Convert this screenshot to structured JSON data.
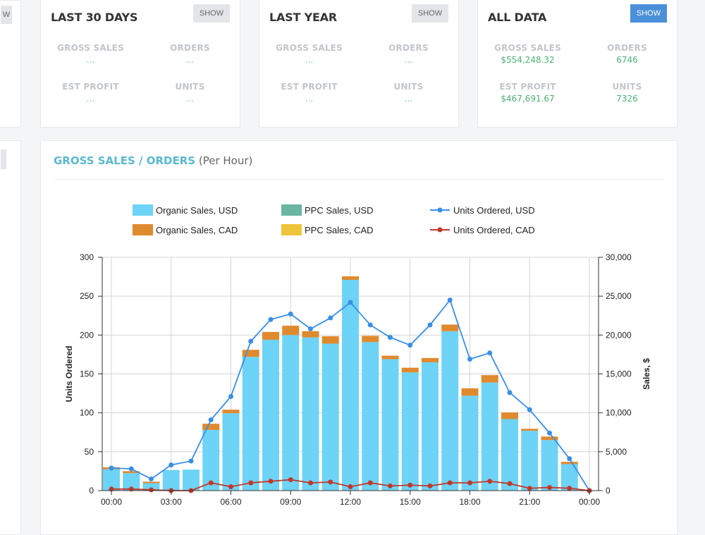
{
  "stat_cards": [
    {
      "title": "LAST 30 DAYS",
      "show_label": "SHOW",
      "active": false,
      "gross_sales_label": "GROSS SALES",
      "gross_sales": "...",
      "orders_label": "ORDERS",
      "orders": "...",
      "est_profit_label": "EST PROFIT",
      "est_profit": "...",
      "units_label": "UNITS",
      "units": "..."
    },
    {
      "title": "LAST YEAR",
      "show_label": "SHOW",
      "active": false,
      "gross_sales_label": "GROSS SALES",
      "gross_sales": "...",
      "orders_label": "ORDERS",
      "orders": "...",
      "est_profit_label": "EST PROFIT",
      "est_profit": "...",
      "units_label": "UNITS",
      "units": "..."
    },
    {
      "title": "ALL DATA",
      "show_label": "SHOW",
      "active": true,
      "gross_sales_label": "GROSS SALES",
      "gross_sales": "$554,248.32",
      "orders_label": "ORDERS",
      "orders": "6746",
      "est_profit_label": "EST PROFIT",
      "est_profit": "$467,691.67",
      "units_label": "UNITS",
      "units": "7326"
    }
  ],
  "partial_left_button_label": "W",
  "chart_panel": {
    "title_main": "GROSS SALES / ORDERS",
    "title_sub": " (Per Hour)"
  },
  "colors": {
    "organic_usd": "#6dd3f7",
    "ppc_usd": "#6bb5a3",
    "organic_cad": "#e08a2e",
    "ppc_cad": "#eec43a",
    "units_usd": "#3a8ee6",
    "units_cad": "#c0392b"
  },
  "chart_data": {
    "type": "bar",
    "title": "",
    "xlabel": "",
    "ylabel_left": "Units Ordered",
    "ylabel_right": "Sales, $",
    "ylim_left": [
      0,
      300
    ],
    "ylim_right": [
      0,
      30000
    ],
    "left_ticks": [
      "0",
      "50",
      "100",
      "150",
      "200",
      "250",
      "300"
    ],
    "right_ticks": [
      "0",
      "5,000",
      "10,000",
      "15,000",
      "20,000",
      "25,000",
      "30,000"
    ],
    "x_tick_labels": [
      "00:00",
      "03:00",
      "06:00",
      "09:00",
      "12:00",
      "15:00",
      "18:00",
      "21:00",
      "00:00"
    ],
    "hours": [
      0,
      1,
      2,
      3,
      4,
      5,
      6,
      7,
      8,
      9,
      10,
      11,
      12,
      13,
      14,
      15,
      16,
      17,
      18,
      19,
      20,
      21,
      22,
      23,
      24
    ],
    "grid": true,
    "legend_position": "top",
    "series": [
      {
        "name": "Organic Sales, USD",
        "kind": "bar",
        "axis": "right",
        "values": [
          2750,
          2250,
          950,
          2650,
          2700,
          7800,
          9950,
          17200,
          19400,
          20000,
          19700,
          18900,
          27100,
          19100,
          16900,
          15200,
          16500,
          20500,
          12200,
          13900,
          9200,
          7700,
          6500,
          3400,
          0
        ]
      },
      {
        "name": "PPC Sales, USD",
        "kind": "bar",
        "axis": "right",
        "values": [
          0,
          0,
          0,
          0,
          0,
          0,
          0,
          0,
          0,
          0,
          0,
          0,
          0,
          0,
          0,
          0,
          0,
          0,
          0,
          0,
          0,
          0,
          0,
          0,
          0
        ]
      },
      {
        "name": "Organic Sales, CAD",
        "kind": "bar",
        "axis": "right",
        "values": [
          250,
          250,
          200,
          0,
          0,
          800,
          450,
          900,
          1000,
          1200,
          800,
          950,
          450,
          800,
          450,
          600,
          550,
          850,
          950,
          950,
          850,
          250,
          450,
          300,
          0
        ]
      },
      {
        "name": "PPC Sales, CAD",
        "kind": "bar",
        "axis": "right",
        "values": [
          0,
          0,
          0,
          0,
          0,
          0,
          0,
          0,
          0,
          0,
          0,
          0,
          0,
          0,
          0,
          0,
          0,
          0,
          0,
          0,
          0,
          0,
          0,
          0,
          0
        ]
      },
      {
        "name": "Units Ordered, USD",
        "kind": "line",
        "axis": "left",
        "values": [
          29,
          28,
          15,
          33,
          38,
          91,
          121,
          192,
          220,
          227,
          208,
          222,
          242,
          213,
          197,
          187,
          213,
          245,
          169,
          177,
          126,
          104,
          74,
          41,
          0
        ]
      },
      {
        "name": "Units Ordered, CAD",
        "kind": "line",
        "axis": "left",
        "values": [
          2,
          2,
          1,
          0,
          0,
          10,
          5,
          10,
          12,
          14,
          10,
          11,
          5,
          10,
          6,
          7,
          6,
          10,
          10,
          12,
          9,
          3,
          4,
          3,
          0
        ]
      }
    ]
  }
}
